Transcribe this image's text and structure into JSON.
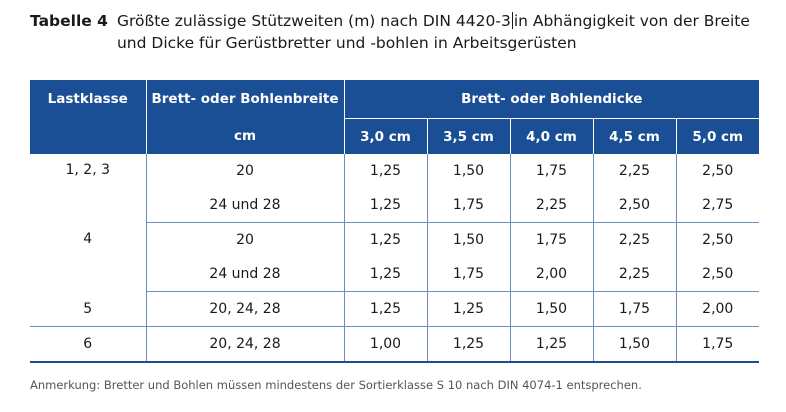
{
  "caption": {
    "label": "Tabelle 4",
    "text_before_cursor": "Größte zulässige Stützweiten (m) nach DIN 4420-3",
    "text_after_cursor": "in Abhängigkeit von der Breite und Dicke für Gerüstbretter und -bohlen in Arbeitsgerüsten"
  },
  "table": {
    "headers": {
      "lastklasse": "Lastklasse",
      "breite": "Brett- oder Bohlenbreite",
      "breite_unit": "cm",
      "dicke": "Brett- oder Bohlendicke",
      "dicken": [
        "3,0 cm",
        "3,5 cm",
        "4,0 cm",
        "4,5 cm",
        "5,0 cm"
      ]
    },
    "rows": [
      {
        "lastklasse": "1, 2, 3",
        "breite": "20",
        "values": [
          "1,25",
          "1,50",
          "1,75",
          "2,25",
          "2,50"
        ]
      },
      {
        "lastklasse": "",
        "breite": "24 und 28",
        "values": [
          "1,25",
          "1,75",
          "2,25",
          "2,50",
          "2,75"
        ]
      },
      {
        "lastklasse": "4",
        "breite": "20",
        "values": [
          "1,25",
          "1,50",
          "1,75",
          "2,25",
          "2,50"
        ]
      },
      {
        "lastklasse": "",
        "breite": "24 und 28",
        "values": [
          "1,25",
          "1,75",
          "2,00",
          "2,25",
          "2,50"
        ]
      },
      {
        "lastklasse": "5",
        "breite": "20, 24, 28",
        "values": [
          "1,25",
          "1,25",
          "1,50",
          "1,75",
          "2,00"
        ]
      },
      {
        "lastklasse": "6",
        "breite": "20, 24, 28",
        "values": [
          "1,00",
          "1,25",
          "1,25",
          "1,50",
          "1,75"
        ]
      }
    ]
  },
  "note": "Anmerkung: Bretter und Bohlen müssen mindestens der Sortierklasse S 10 nach DIN 4074-1 entsprechen.",
  "colors": {
    "header_bg": "#1b4f95",
    "rule": "#6b8cc0"
  }
}
